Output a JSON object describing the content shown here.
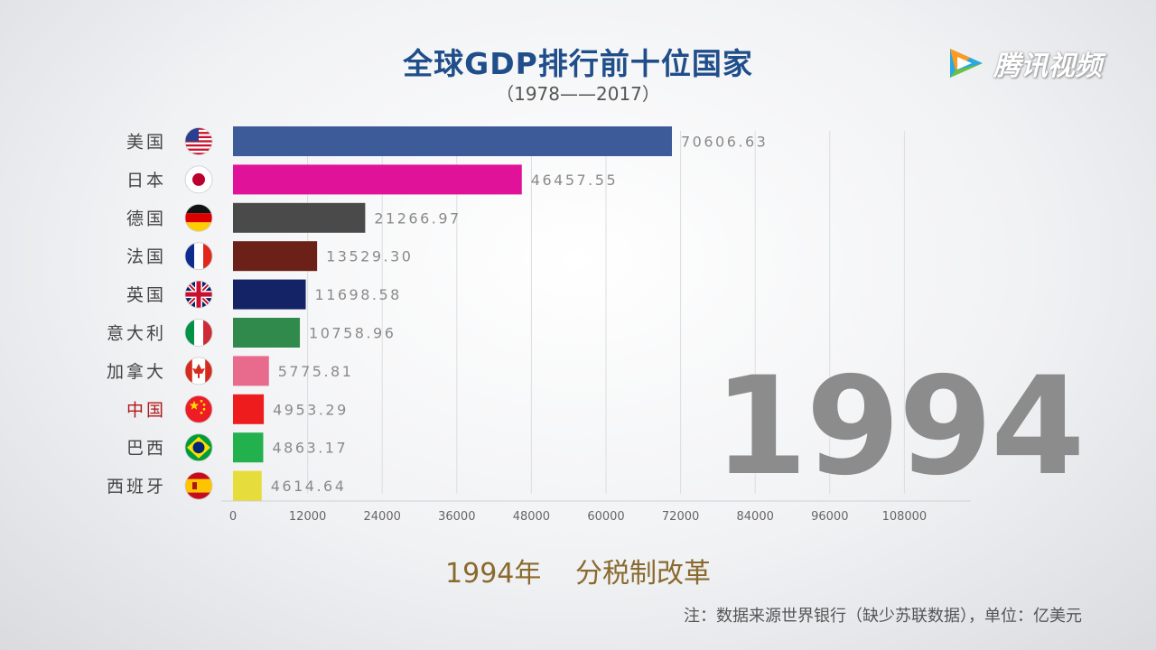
{
  "title": "全球GDP排行前十位国家",
  "subtitle": "（1978——2017）",
  "logo_text": "腾讯视频",
  "year": "1994",
  "event": {
    "year_label": "1994年",
    "text": "分税制改革"
  },
  "note": "注：数据来源世界银行（缺少苏联数据），单位：亿美元",
  "chart_data": {
    "type": "bar",
    "orientation": "horizontal",
    "title": "全球GDP排行前十位国家",
    "unit": "亿美元",
    "categories": [
      "美国",
      "日本",
      "德国",
      "法国",
      "英国",
      "意大利",
      "加拿大",
      "中国",
      "巴西",
      "西班牙"
    ],
    "values": [
      70606.63,
      46457.55,
      21266.97,
      13529.3,
      11698.58,
      10758.96,
      5775.81,
      4953.29,
      4863.17,
      4614.64
    ],
    "value_labels": [
      "70606.63",
      "46457.55",
      "21266.97",
      "13529.30",
      "11698.58",
      "10758.96",
      "5775.81",
      "4953.29",
      "4863.17",
      "4614.64"
    ],
    "colors": [
      "#3d5a99",
      "#e0129a",
      "#4a4a4a",
      "#6b2117",
      "#142266",
      "#2f8a4c",
      "#e86a8c",
      "#ee1c1c",
      "#22b14c",
      "#e6dc3c"
    ],
    "label_colors": [
      "#444444",
      "#444444",
      "#444444",
      "#444444",
      "#444444",
      "#444444",
      "#444444",
      "#b01818",
      "#444444",
      "#444444"
    ],
    "flags": [
      "us-flag-icon",
      "japan-flag-icon",
      "germany-flag-icon",
      "france-flag-icon",
      "uk-flag-icon",
      "italy-flag-icon",
      "canada-flag-icon",
      "china-flag-icon",
      "brazil-flag-icon",
      "spain-flag-icon"
    ],
    "xticks": [
      0,
      12000,
      24000,
      36000,
      48000,
      60000,
      72000,
      84000,
      96000,
      108000
    ],
    "xlim": [
      0,
      120000
    ],
    "grid": true
  }
}
